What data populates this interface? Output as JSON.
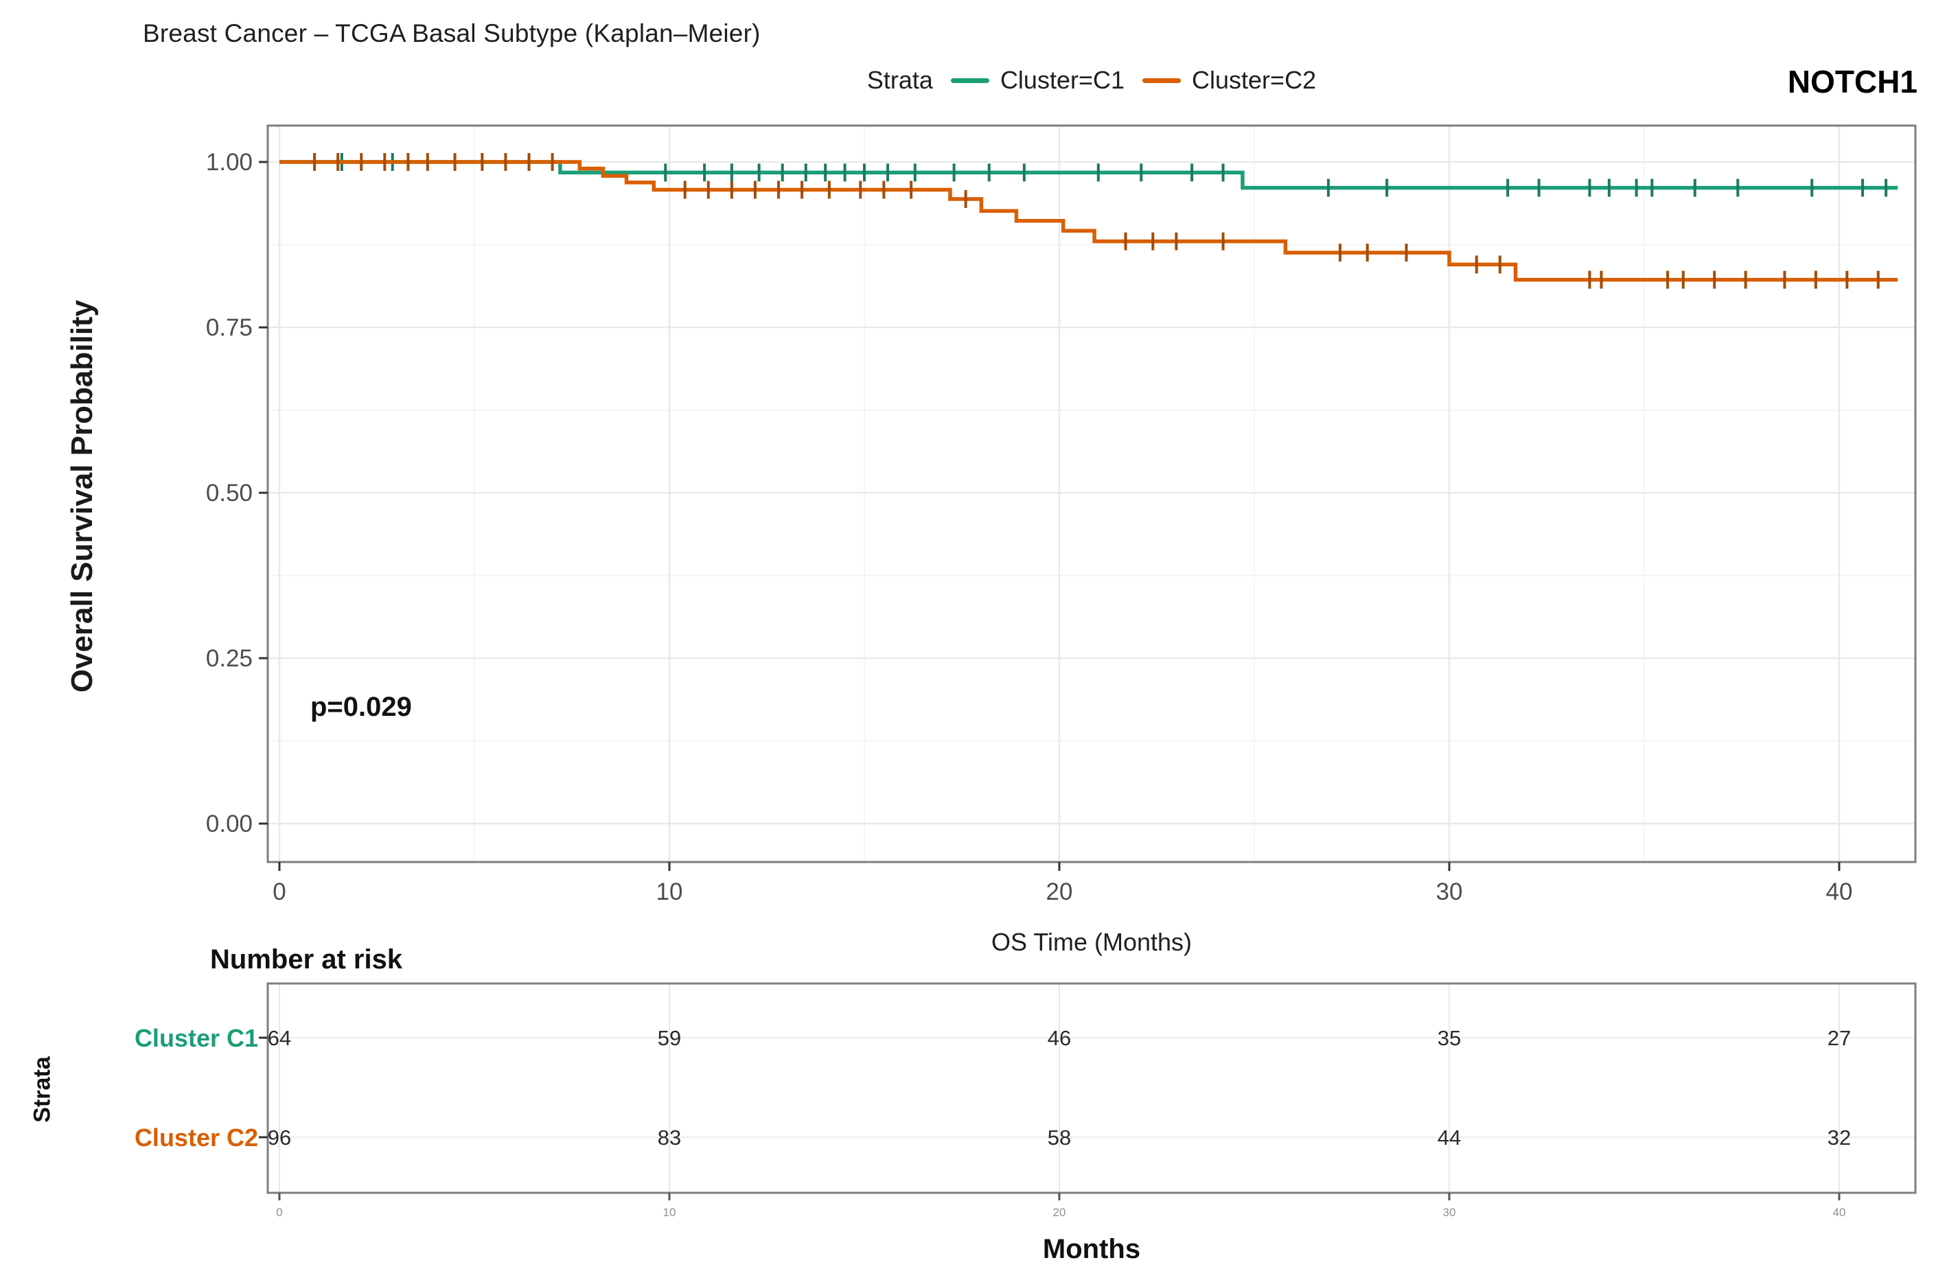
{
  "header": {
    "title": "Breast Cancer – TCGA Basal Subtype (Kaplan–Meier)",
    "gene_label": "NOTCH1"
  },
  "legend": {
    "title": "Strata",
    "items": [
      {
        "label": "Cluster=C1",
        "color": "#1B9E77"
      },
      {
        "label": "Cluster=C2",
        "color": "#D95F02"
      }
    ]
  },
  "annotation": {
    "p_value": "p=0.029"
  },
  "axes": {
    "y_label": "Overall Survival Probability",
    "x_label": "OS Time (Months)",
    "risk_table_x_label": "Months"
  },
  "risk_table": {
    "heading": "Number at risk",
    "y_axis_label": "Strata",
    "time_points": [
      0,
      10,
      20,
      30,
      40
    ],
    "rows": [
      {
        "label": "Cluster C1",
        "color": "#1B9E77",
        "values": [
          64,
          59,
          46,
          35,
          27
        ]
      },
      {
        "label": "Cluster C2",
        "color": "#D95F02",
        "values": [
          96,
          83,
          58,
          44,
          32
        ]
      }
    ]
  },
  "chart_data": {
    "type": "line",
    "subtype": "kaplan-meier-step",
    "title": "Breast Cancer – TCGA Basal Subtype (Kaplan–Meier)",
    "xlabel": "OS Time (Months)",
    "ylabel": "Overall Survival Probability",
    "xlim": [
      0,
      41.5
    ],
    "ylim": [
      0,
      1
    ],
    "xticks": [
      0,
      10,
      20,
      30,
      40
    ],
    "yticks": [
      0,
      0.25,
      0.5,
      0.75,
      1
    ],
    "ytick_labels": [
      "0.00",
      "0.25",
      "0.50",
      "0.75",
      "1.00"
    ],
    "grid": true,
    "legend_position": "top",
    "p_value": "p=0.029",
    "series": [
      {
        "name": "Cluster=C1",
        "color": "#1B9E77",
        "censor_color": "#1d7a5e",
        "steps": [
          [
            0,
            1.0
          ],
          [
            7.2,
            0.984
          ],
          [
            24.7,
            0.961
          ],
          [
            41.5,
            0.961
          ]
        ],
        "censors": [
          [
            1.6,
            1
          ],
          [
            2.9,
            1
          ],
          [
            9.9,
            0.984
          ],
          [
            10.9,
            0.984
          ],
          [
            11.6,
            0.984
          ],
          [
            12.3,
            0.984
          ],
          [
            12.9,
            0.984
          ],
          [
            13.5,
            0.984
          ],
          [
            14.0,
            0.984
          ],
          [
            14.5,
            0.984
          ],
          [
            15.0,
            0.984
          ],
          [
            15.6,
            0.984
          ],
          [
            16.3,
            0.984
          ],
          [
            17.3,
            0.984
          ],
          [
            18.2,
            0.984
          ],
          [
            19.1,
            0.984
          ],
          [
            21.0,
            0.984
          ],
          [
            22.1,
            0.984
          ],
          [
            23.4,
            0.984
          ],
          [
            24.2,
            0.984
          ],
          [
            26.9,
            0.961
          ],
          [
            28.4,
            0.961
          ],
          [
            31.5,
            0.961
          ],
          [
            32.3,
            0.961
          ],
          [
            33.6,
            0.961
          ],
          [
            34.1,
            0.961
          ],
          [
            34.8,
            0.961
          ],
          [
            35.2,
            0.961
          ],
          [
            36.3,
            0.961
          ],
          [
            37.4,
            0.961
          ],
          [
            39.3,
            0.961
          ],
          [
            40.6,
            0.961
          ],
          [
            41.2,
            0.961
          ]
        ]
      },
      {
        "name": "Cluster=C2",
        "color": "#D95F02",
        "censor_color": "#a44c06",
        "steps": [
          [
            0,
            1.0
          ],
          [
            7.7,
            0.99
          ],
          [
            8.3,
            0.979
          ],
          [
            8.9,
            0.969
          ],
          [
            9.6,
            0.958
          ],
          [
            17.2,
            0.944
          ],
          [
            18.0,
            0.926
          ],
          [
            18.9,
            0.911
          ],
          [
            20.1,
            0.896
          ],
          [
            20.9,
            0.88
          ],
          [
            25.8,
            0.863
          ],
          [
            30.0,
            0.845
          ],
          [
            31.7,
            0.822
          ],
          [
            41.5,
            0.822
          ]
        ],
        "censors": [
          [
            0.9,
            1
          ],
          [
            1.5,
            1
          ],
          [
            2.1,
            1
          ],
          [
            2.7,
            1
          ],
          [
            3.3,
            1
          ],
          [
            3.8,
            1
          ],
          [
            4.5,
            1
          ],
          [
            5.2,
            1
          ],
          [
            5.8,
            1
          ],
          [
            6.4,
            1
          ],
          [
            7.0,
            1
          ],
          [
            10.4,
            0.958
          ],
          [
            11.0,
            0.958
          ],
          [
            11.6,
            0.958
          ],
          [
            12.2,
            0.958
          ],
          [
            12.8,
            0.958
          ],
          [
            13.4,
            0.958
          ],
          [
            14.1,
            0.958
          ],
          [
            14.9,
            0.958
          ],
          [
            15.5,
            0.958
          ],
          [
            16.2,
            0.958
          ],
          [
            17.6,
            0.944
          ],
          [
            21.7,
            0.88
          ],
          [
            22.4,
            0.88
          ],
          [
            23.0,
            0.88
          ],
          [
            24.2,
            0.88
          ],
          [
            27.2,
            0.863
          ],
          [
            27.9,
            0.863
          ],
          [
            28.9,
            0.863
          ],
          [
            30.7,
            0.845
          ],
          [
            31.3,
            0.845
          ],
          [
            33.6,
            0.822
          ],
          [
            33.9,
            0.822
          ],
          [
            35.6,
            0.822
          ],
          [
            36.0,
            0.822
          ],
          [
            36.8,
            0.822
          ],
          [
            37.6,
            0.822
          ],
          [
            38.6,
            0.822
          ],
          [
            39.4,
            0.822
          ],
          [
            40.2,
            0.822
          ],
          [
            41.0,
            0.822
          ]
        ]
      }
    ],
    "risk_table": {
      "heading": "Number at risk",
      "time_points": [
        0,
        10,
        20,
        30,
        40
      ],
      "rows": [
        {
          "label": "Cluster C1",
          "values": [
            64,
            59,
            46,
            35,
            27
          ]
        },
        {
          "label": "Cluster C2",
          "values": [
            96,
            83,
            58,
            44,
            32
          ]
        }
      ]
    }
  }
}
